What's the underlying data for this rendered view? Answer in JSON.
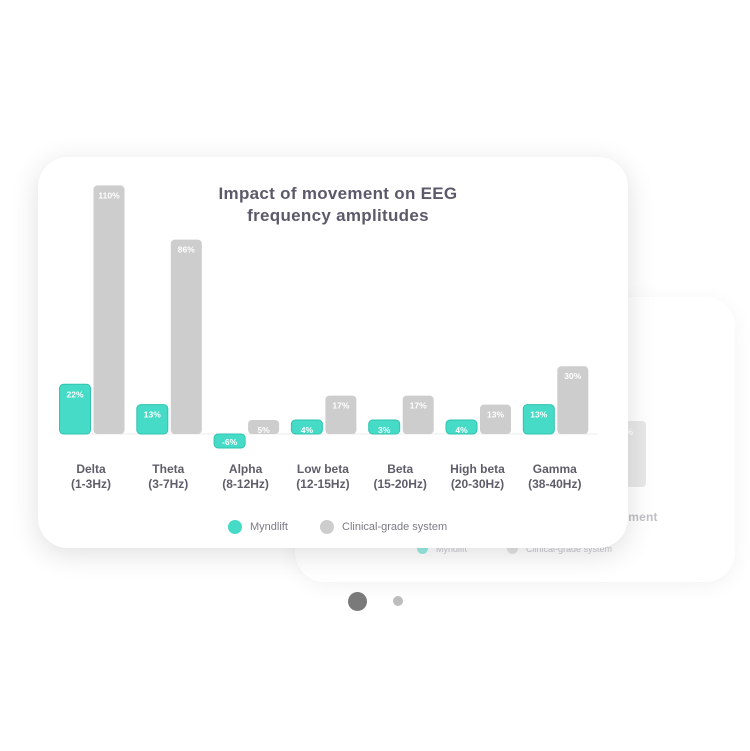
{
  "colors": {
    "myndlift": "#46dbc7",
    "clinical": "#cdcdcd",
    "title": "#5b5a6b",
    "label": "#5e5e6a"
  },
  "back_card": {
    "title_fragment": "ovement",
    "bar_label": "%",
    "legend": [
      "Myndlift",
      "Clinical-grade system"
    ]
  },
  "chart_data": {
    "type": "bar",
    "title": "Impact of movement on EEG frequency amplitudes",
    "categories": [
      [
        "Delta",
        "(1-3Hz)"
      ],
      [
        "Theta",
        "(3-7Hz)"
      ],
      [
        "Alpha",
        "(8-12Hz)"
      ],
      [
        "Low beta",
        "(12-15Hz)"
      ],
      [
        "Beta",
        "(15-20Hz)"
      ],
      [
        "High beta",
        "(20-30Hz)"
      ],
      [
        "Gamma",
        "(38-40Hz)"
      ]
    ],
    "series": [
      {
        "name": "Myndlift",
        "values": [
          22,
          13,
          -6,
          4,
          3,
          4,
          13
        ],
        "labels": [
          "22%",
          "13%",
          "-6%",
          "4%",
          "3%",
          "4%",
          "13%"
        ]
      },
      {
        "name": "Clinical-grade system",
        "values": [
          110,
          86,
          5,
          17,
          17,
          13,
          30
        ],
        "labels": [
          "110%",
          "86%",
          "5%",
          "17%",
          "17%",
          "13%",
          "30%"
        ]
      }
    ],
    "ylim": [
      -6,
      110
    ],
    "grid": false,
    "legend_position": "bottom-center"
  },
  "pager": {
    "pages": 2,
    "active": 0
  }
}
